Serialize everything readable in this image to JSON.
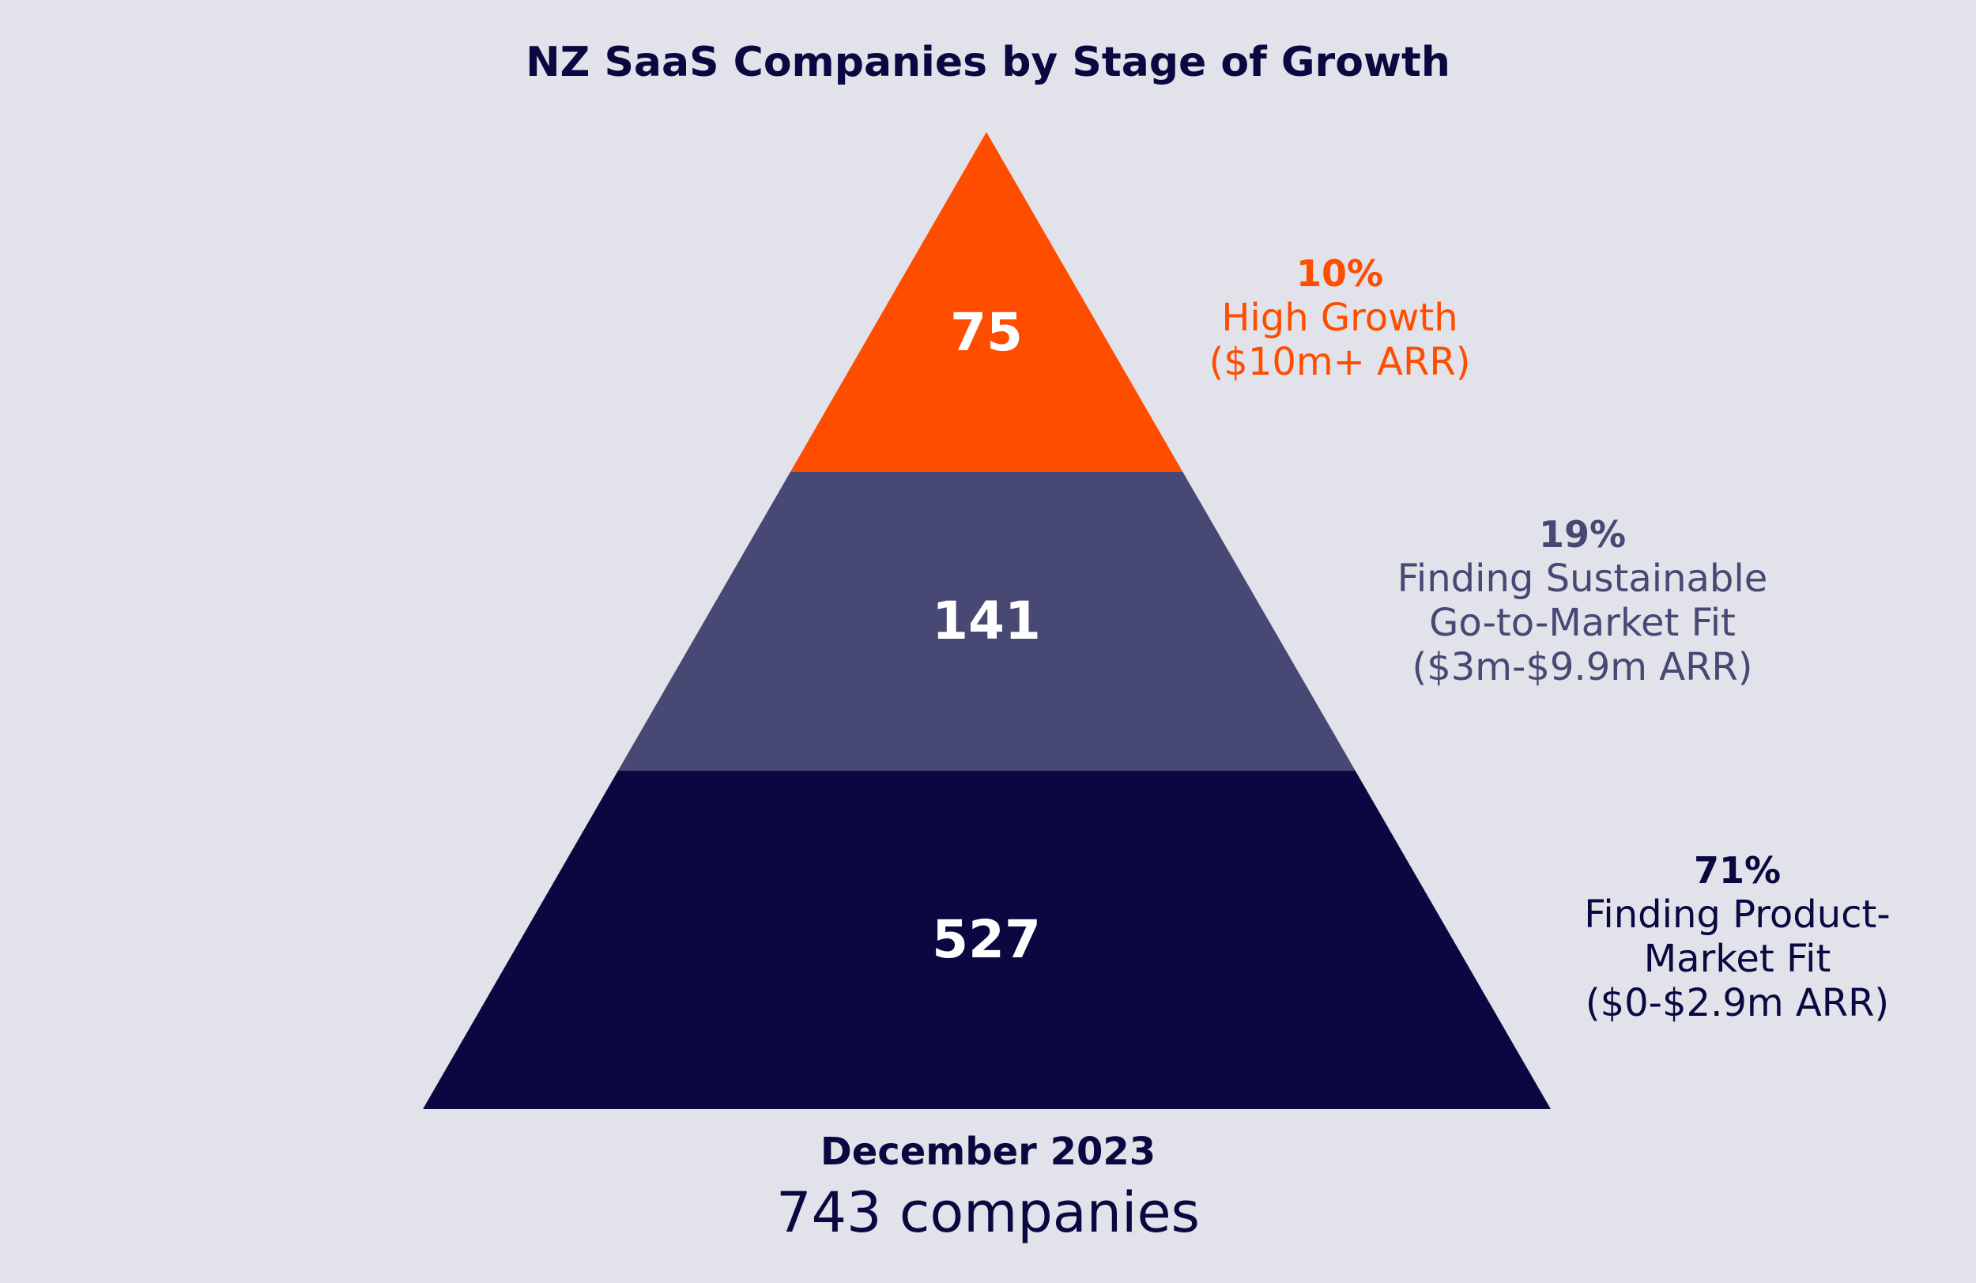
{
  "colors": {
    "background": "#e2e2ea",
    "navy": "#0b0841",
    "slate": "#474873",
    "orange": "#ff4d00",
    "white": "#ffffff"
  },
  "title": "NZ SaaS Companies by Stage of Growth",
  "footer": {
    "date": "December 2023",
    "total": "743 companies"
  },
  "chart_data": {
    "type": "pyramid",
    "title": "NZ SaaS Companies by Stage of Growth",
    "total": 743,
    "tiers": [
      {
        "value": 75,
        "value_label": "75",
        "percent_label": "10%",
        "description": [
          "High Growth",
          "($10m+ ARR)"
        ],
        "color": "#ff4d00"
      },
      {
        "value": 141,
        "value_label": "141",
        "percent_label": "19%",
        "description": [
          "Finding Sustainable",
          "Go-to-Market Fit",
          "($3m-$9.9m ARR)"
        ],
        "color": "#474873"
      },
      {
        "value": 527,
        "value_label": "527",
        "percent_label": "71%",
        "description": [
          "Finding Product-",
          "Market Fit",
          "($0-$2.9m ARR)"
        ],
        "color": "#0b0841"
      }
    ]
  }
}
